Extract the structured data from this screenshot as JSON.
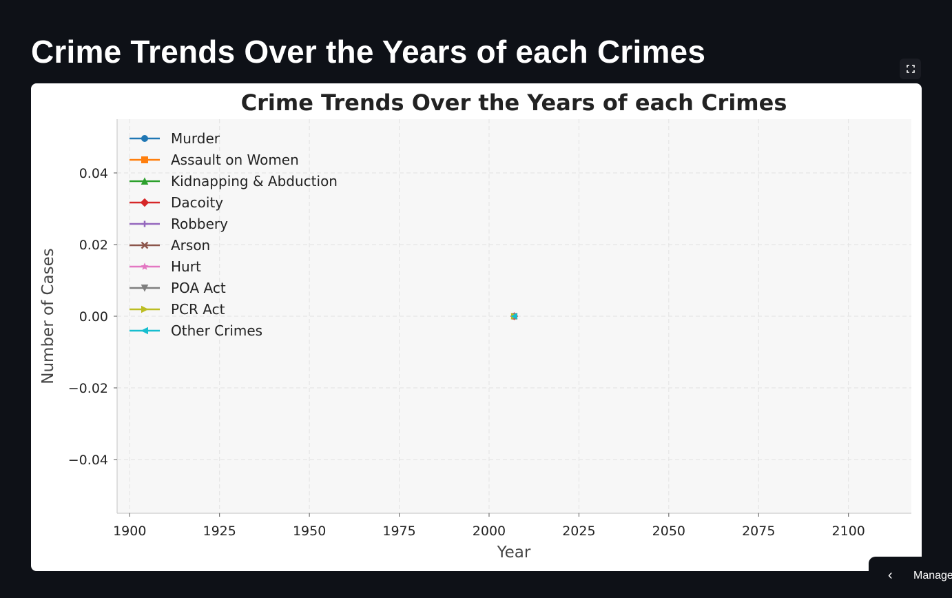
{
  "page": {
    "heading": "Crime Trends Over the Years of each Crimes",
    "fullscreen_icon": "expand-icon",
    "manage_label": "Manage",
    "manage_icon": "chevron-left-icon"
  },
  "chart_data": {
    "type": "line",
    "title": "Crime Trends Over the Years of each Crimes",
    "xlabel": "Year",
    "ylabel": "Number of Cases",
    "xlim": [
      1896.5,
      2117.5
    ],
    "ylim": [
      -0.055,
      0.055
    ],
    "xticks": [
      1900,
      1925,
      1950,
      1975,
      2000,
      2025,
      2050,
      2075,
      2100
    ],
    "xtick_labels": [
      "1900",
      "1925",
      "1950",
      "1975",
      "2000",
      "2025",
      "2050",
      "2075",
      "2100"
    ],
    "yticks": [
      0.04,
      0.02,
      0.0,
      -0.02,
      -0.04
    ],
    "ytick_labels": [
      "0.04",
      "0.02",
      "0.00",
      "−0.02",
      "−0.04"
    ],
    "grid": true,
    "legend_position": "upper left",
    "background": "#f7f7f7",
    "series": [
      {
        "name": "Murder",
        "color": "#1f77b4",
        "marker": "circle",
        "x": [
          2007
        ],
        "y": [
          0
        ]
      },
      {
        "name": "Assault on Women",
        "color": "#ff7f0e",
        "marker": "square",
        "x": [
          2007
        ],
        "y": [
          0
        ]
      },
      {
        "name": "Kidnapping & Abduction",
        "color": "#2ca02c",
        "marker": "triangle-up",
        "x": [
          2007
        ],
        "y": [
          0
        ]
      },
      {
        "name": "Dacoity",
        "color": "#d62728",
        "marker": "diamond",
        "x": [
          2007
        ],
        "y": [
          0
        ]
      },
      {
        "name": "Robbery",
        "color": "#9467bd",
        "marker": "plus",
        "x": [
          2007
        ],
        "y": [
          0
        ]
      },
      {
        "name": "Arson",
        "color": "#8c564b",
        "marker": "x",
        "x": [
          2007
        ],
        "y": [
          0
        ]
      },
      {
        "name": "Hurt",
        "color": "#e377c2",
        "marker": "star",
        "x": [
          2007
        ],
        "y": [
          0
        ]
      },
      {
        "name": "POA Act",
        "color": "#7f7f7f",
        "marker": "triangle-down",
        "x": [
          2007
        ],
        "y": [
          0
        ]
      },
      {
        "name": "PCR Act",
        "color": "#bcbd22",
        "marker": "triangle-right",
        "x": [
          2007
        ],
        "y": [
          0
        ]
      },
      {
        "name": "Other Crimes",
        "color": "#17becf",
        "marker": "triangle-left",
        "x": [
          2007
        ],
        "y": [
          0
        ]
      }
    ]
  }
}
